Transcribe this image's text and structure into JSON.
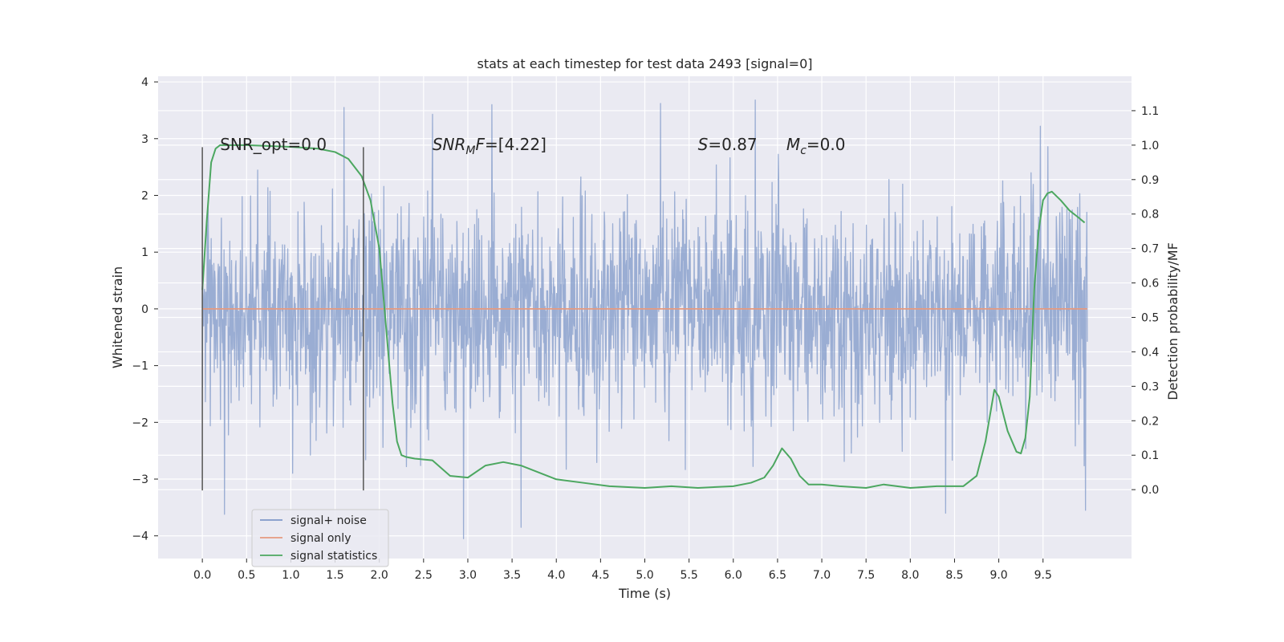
{
  "chart_data": {
    "type": "line",
    "title": "stats at each timestep for test data 2493 [signal=0]",
    "xlabel": "Time (s)",
    "ylabel": "Whitened strain",
    "y2label": "Detection probability/MF",
    "xlim": [
      -0.5,
      10.5
    ],
    "ylim": [
      -4.4,
      4.1
    ],
    "y2lim": [
      -0.2,
      1.2
    ],
    "x_ticks": [
      0.0,
      0.5,
      1.0,
      1.5,
      2.0,
      2.5,
      3.0,
      3.5,
      4.0,
      4.5,
      5.0,
      5.5,
      6.0,
      6.5,
      7.0,
      7.5,
      8.0,
      8.5,
      9.0,
      9.5
    ],
    "x_tick_labels": [
      "0.0",
      "0.5",
      "1.0",
      "1.5",
      "2.0",
      "2.5",
      "3.0",
      "3.5",
      "4.0",
      "4.5",
      "5.0",
      "5.5",
      "6.0",
      "6.5",
      "7.0",
      "7.5",
      "8.0",
      "8.5",
      "9.0",
      "9.5"
    ],
    "y_ticks": [
      4,
      3,
      2,
      1,
      0,
      -1,
      -2,
      -3,
      -4
    ],
    "y_tick_labels": [
      "4",
      "3",
      "2",
      "1",
      "0",
      "−1",
      "−2",
      "−3",
      "−4"
    ],
    "y2_ticks": [
      1.1,
      1.0,
      0.9,
      0.8,
      0.7,
      0.6,
      0.5,
      0.4,
      0.3,
      0.2,
      0.1,
      0.0
    ],
    "y2_tick_labels": [
      "1.1",
      "1.0",
      "0.9",
      "0.8",
      "0.7",
      "0.6",
      "0.5",
      "0.4",
      "0.3",
      "0.2",
      "0.1",
      "0.0"
    ],
    "grid": true,
    "legend_position": "lower-left",
    "annotations": [
      {
        "x": 0.2,
        "text_html": "SNR_opt=0.0"
      },
      {
        "x": 2.6,
        "text_html": "<tspan font-style=\"italic\">SNR</tspan><tspan font-style=\"italic\" font-size=\"14\" dy=\"5\">M</tspan><tspan font-style=\"italic\" dy=\"-5\">F</tspan>=[4.22]"
      },
      {
        "x": 5.6,
        "text_html": "<tspan font-style=\"italic\">S</tspan>=0.87"
      },
      {
        "x": 6.6,
        "text_html": "<tspan font-style=\"italic\">M</tspan><tspan font-style=\"italic\" font-size=\"14\" dy=\"5\">c</tspan><tspan dy=\"-5\">=0.0</tspan>"
      }
    ],
    "annotation_y": 2.9,
    "vertical_markers": [
      {
        "x": 0.0,
        "y_range": [
          -3.2,
          2.85
        ],
        "color": "#555555"
      },
      {
        "x": 1.82,
        "y_range": [
          -3.2,
          2.85
        ],
        "color": "#555555"
      }
    ],
    "series": [
      {
        "name": "signal+ noise",
        "axis": "left",
        "color": "#7f98c8",
        "kind": "noise",
        "x_range": [
          0.0,
          10.0
        ],
        "n_points": 2000,
        "envelope": [
          -2.6,
          2.6
        ],
        "extremes": [
          {
            "x": 0.25,
            "y": -3.62
          },
          {
            "x": 1.6,
            "y": 3.55
          },
          {
            "x": 2.6,
            "y": 3.43
          },
          {
            "x": 2.95,
            "y": -4.05
          },
          {
            "x": 3.27,
            "y": 3.6
          },
          {
            "x": 3.6,
            "y": -3.85
          },
          {
            "x": 5.18,
            "y": 3.62
          },
          {
            "x": 6.25,
            "y": 3.68
          },
          {
            "x": 8.4,
            "y": -3.6
          },
          {
            "x": 9.47,
            "y": 3.22
          },
          {
            "x": 9.98,
            "y": -3.55
          }
        ]
      },
      {
        "name": "signal only",
        "axis": "left",
        "color": "#e69a80",
        "kind": "line",
        "x": [
          0.0,
          10.0
        ],
        "y": [
          0.0,
          0.0
        ]
      },
      {
        "name": "signal statistics",
        "axis": "right",
        "color": "#4ca760",
        "kind": "line",
        "x": [
          0.0,
          0.05,
          0.1,
          0.15,
          0.2,
          0.3,
          0.5,
          1.0,
          1.3,
          1.5,
          1.65,
          1.8,
          1.9,
          2.0,
          2.05,
          2.1,
          2.15,
          2.2,
          2.25,
          2.3,
          2.4,
          2.6,
          2.8,
          3.0,
          3.2,
          3.4,
          3.6,
          3.8,
          4.0,
          4.3,
          4.6,
          5.0,
          5.3,
          5.6,
          6.0,
          6.2,
          6.35,
          6.45,
          6.55,
          6.65,
          6.75,
          6.85,
          7.0,
          7.2,
          7.5,
          7.7,
          8.0,
          8.3,
          8.6,
          8.75,
          8.85,
          8.95,
          9.0,
          9.1,
          9.2,
          9.25,
          9.3,
          9.35,
          9.4,
          9.45,
          9.5,
          9.55,
          9.6,
          9.7,
          9.8,
          9.9,
          9.97
        ],
        "y": [
          0.58,
          0.78,
          0.95,
          0.99,
          1.0,
          1.0,
          1.0,
          0.995,
          0.99,
          0.98,
          0.96,
          0.91,
          0.84,
          0.7,
          0.55,
          0.4,
          0.25,
          0.14,
          0.1,
          0.095,
          0.09,
          0.085,
          0.04,
          0.035,
          0.07,
          0.08,
          0.07,
          0.05,
          0.03,
          0.02,
          0.01,
          0.005,
          0.01,
          0.005,
          0.01,
          0.02,
          0.035,
          0.07,
          0.12,
          0.09,
          0.04,
          0.015,
          0.015,
          0.01,
          0.005,
          0.015,
          0.005,
          0.01,
          0.01,
          0.04,
          0.14,
          0.29,
          0.27,
          0.17,
          0.11,
          0.105,
          0.15,
          0.27,
          0.58,
          0.75,
          0.84,
          0.86,
          0.865,
          0.84,
          0.81,
          0.79,
          0.775
        ]
      }
    ]
  }
}
